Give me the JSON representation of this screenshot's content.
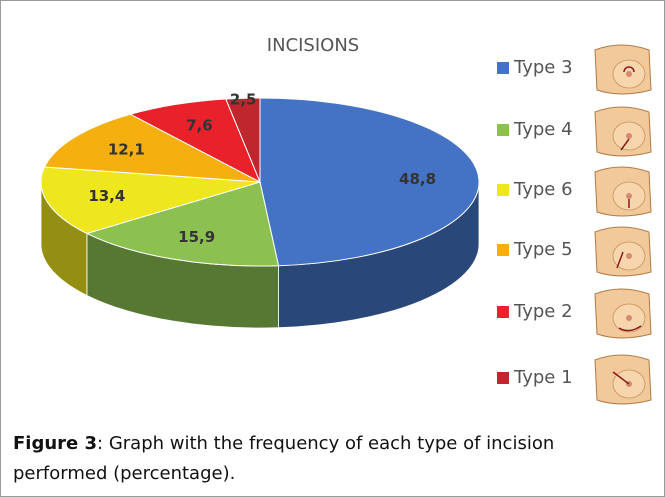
{
  "chart_data": {
    "type": "pie",
    "title": "INCISIONS",
    "categories": [
      "Type 3",
      "Type 4",
      "Type 6",
      "Type 5",
      "Type 2",
      "Type 1"
    ],
    "values": [
      48.8,
      15.9,
      13.4,
      12.1,
      7.6,
      2.5
    ],
    "value_labels": [
      "48,8",
      "15,9",
      "13,4",
      "12,1",
      "7,6",
      "2,5"
    ],
    "colors": [
      "#4472c4",
      "#8cc152",
      "#eee61e",
      "#f5b00f",
      "#e8212b",
      "#c0262d"
    ],
    "legend": "right"
  },
  "caption": {
    "label": "Figure 3",
    "text": ": Graph with the frequency of each type of incision performed (percentage)."
  }
}
